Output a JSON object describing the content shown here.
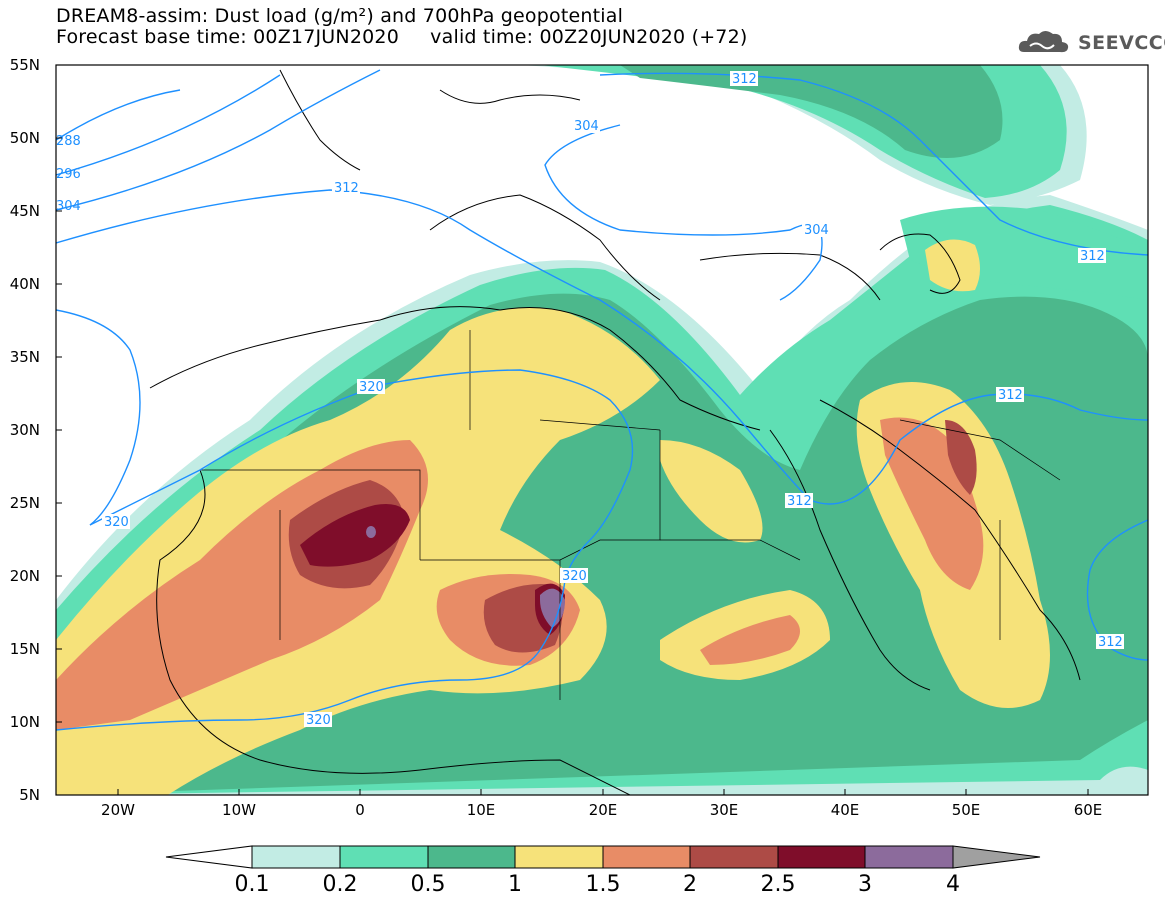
{
  "title": {
    "line1": "DREAM8-assim: Dust load (g/m²) and 700hPa geopotential",
    "line2": "Forecast base time: 00Z17JUN2020     valid time: 00Z20JUN2020 (+72)"
  },
  "logo": {
    "text": "SEEVCCC",
    "icon": "cloud-icon"
  },
  "axes": {
    "lat_labels": [
      "55N",
      "50N",
      "45N",
      "40N",
      "35N",
      "30N",
      "25N",
      "20N",
      "15N",
      "10N",
      "5N"
    ],
    "lon_labels": [
      "20W",
      "10W",
      "0",
      "10E",
      "20E",
      "30E",
      "40E",
      "50E",
      "60E"
    ]
  },
  "contours": [
    {
      "label": "312"
    },
    {
      "label": "304"
    },
    {
      "label": "312"
    },
    {
      "label": "304"
    },
    {
      "label": "312"
    },
    {
      "label": "320"
    },
    {
      "label": "312"
    },
    {
      "label": "320"
    },
    {
      "label": "312"
    },
    {
      "label": "320"
    },
    {
      "label": "320"
    },
    {
      "label": "288"
    },
    {
      "label": "296"
    },
    {
      "label": "304"
    },
    {
      "label": "312"
    }
  ],
  "colorbar": {
    "labels": [
      "0.1",
      "0.2",
      "0.5",
      "1",
      "1.5",
      "2",
      "2.5",
      "3",
      "4"
    ],
    "colors": [
      "#c2ece4",
      "#5fdfb4",
      "#4cb88c",
      "#f6e27a",
      "#e88c66",
      "#ad4b46",
      "#7f0d2a",
      "#8c6b9c"
    ]
  },
  "colors": {
    "contour": "#1e90ff",
    "land_border": "#000000",
    "below_range": "#ffffff",
    "above_range": "#a0a0a0"
  }
}
